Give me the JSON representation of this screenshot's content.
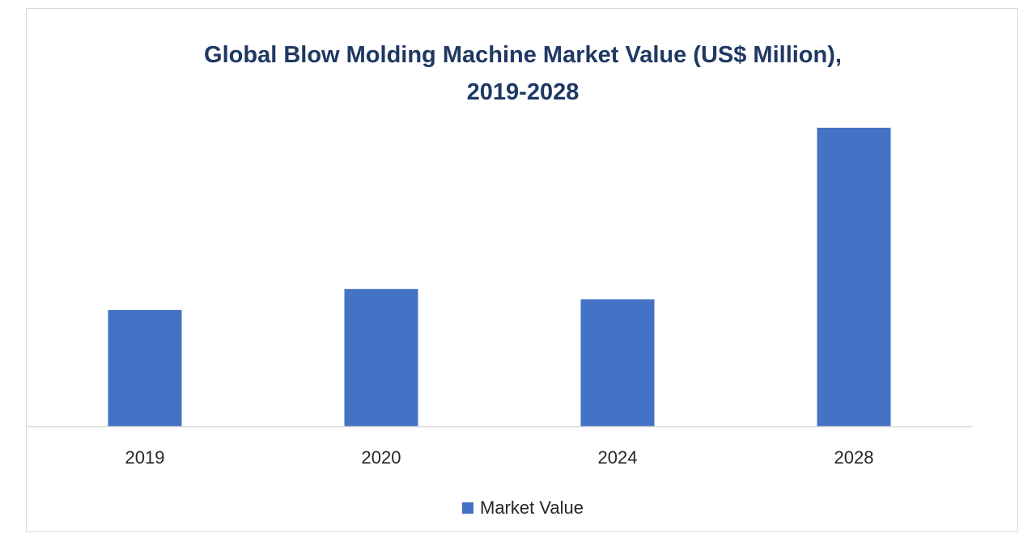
{
  "chart_data": {
    "type": "bar",
    "title_lines": [
      "Global Blow Molding Machine Market Value (US$ Million),",
      "2019-2028"
    ],
    "categories": [
      "2019",
      "2020",
      "2024",
      "2028"
    ],
    "series": [
      {
        "name": "Market Value",
        "color": "#4472c4",
        "values": [
          3.9,
          4.6,
          4.25,
          10.0
        ]
      }
    ],
    "ylim": [
      0,
      11
    ],
    "grid": false,
    "legend_position": "bottom-center",
    "axis_color": "#d9d9d9"
  }
}
